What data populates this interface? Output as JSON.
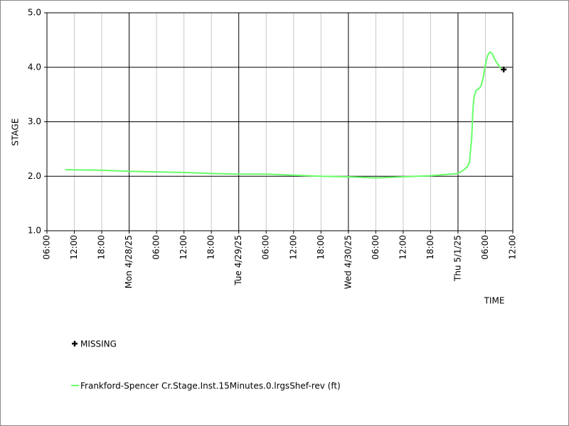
{
  "chart_data": {
    "type": "line",
    "x_label": "TIME",
    "y_label": "STAGE",
    "xlim": [
      "2025-04-27T06:00",
      "2025-05-01T12:00"
    ],
    "xticks": [
      {
        "value": "2025-04-27T06:00",
        "label": "06:00"
      },
      {
        "value": "2025-04-27T12:00",
        "label": "12:00"
      },
      {
        "value": "2025-04-27T18:00",
        "label": "18:00"
      },
      {
        "value": "2025-04-28T00:00",
        "label": "Mon 4/28/25"
      },
      {
        "value": "2025-04-28T06:00",
        "label": "06:00"
      },
      {
        "value": "2025-04-28T12:00",
        "label": "12:00"
      },
      {
        "value": "2025-04-28T18:00",
        "label": "18:00"
      },
      {
        "value": "2025-04-29T00:00",
        "label": "Tue 4/29/25"
      },
      {
        "value": "2025-04-29T06:00",
        "label": "06:00"
      },
      {
        "value": "2025-04-29T12:00",
        "label": "12:00"
      },
      {
        "value": "2025-04-29T18:00",
        "label": "18:00"
      },
      {
        "value": "2025-04-30T00:00",
        "label": "Wed 4/30/25"
      },
      {
        "value": "2025-04-30T06:00",
        "label": "06:00"
      },
      {
        "value": "2025-04-30T12:00",
        "label": "12:00"
      },
      {
        "value": "2025-04-30T18:00",
        "label": "18:00"
      },
      {
        "value": "2025-05-01T00:00",
        "label": "Thu 5/1/25"
      },
      {
        "value": "2025-05-01T06:00",
        "label": "06:00"
      },
      {
        "value": "2025-05-01T12:00",
        "label": "12:00"
      }
    ],
    "ylim": [
      1,
      5
    ],
    "yticks": [
      {
        "value": 1,
        "label": "1.0"
      },
      {
        "value": 2,
        "label": "2.0"
      },
      {
        "value": 3,
        "label": "3.0"
      },
      {
        "value": 4,
        "label": "4.0"
      },
      {
        "value": 5,
        "label": "5.0"
      }
    ],
    "grid": true,
    "series": [
      {
        "name": "MISSING",
        "style": "marker",
        "color": "#000000",
        "x": [
          "2025-05-01T10:00"
        ],
        "values": [
          3.96
        ]
      },
      {
        "name": "Frankford-Spencer Cr.Stage.Inst.15Minutes.0.lrgsShef-rev (ft)",
        "style": "line",
        "color": "#66ff66",
        "x": [
          "2025-04-27T10:00",
          "2025-04-27T18:00",
          "2025-04-28T00:00",
          "2025-04-28T06:00",
          "2025-04-28T12:00",
          "2025-04-28T18:00",
          "2025-04-29T00:00",
          "2025-04-29T06:00",
          "2025-04-29T12:00",
          "2025-04-29T18:00",
          "2025-04-30T00:00",
          "2025-04-30T06:00",
          "2025-04-30T12:00",
          "2025-04-30T18:00",
          "2025-05-01T00:00",
          "2025-05-01T01:00",
          "2025-05-01T02:00",
          "2025-05-01T02:30",
          "2025-05-01T03:00",
          "2025-05-01T03:15",
          "2025-05-01T03:30",
          "2025-05-01T04:00",
          "2025-05-01T04:30",
          "2025-05-01T05:00",
          "2025-05-01T05:30",
          "2025-05-01T06:00",
          "2025-05-01T06:30",
          "2025-05-01T07:00",
          "2025-05-01T07:30",
          "2025-05-01T08:00",
          "2025-05-01T09:00",
          "2025-05-01T09:30"
        ],
        "values": [
          2.12,
          2.11,
          2.09,
          2.08,
          2.07,
          2.05,
          2.04,
          2.04,
          2.02,
          2.0,
          1.99,
          1.97,
          1.99,
          2.01,
          2.05,
          2.1,
          2.17,
          2.25,
          2.7,
          3.2,
          3.45,
          3.58,
          3.6,
          3.65,
          3.8,
          4.05,
          4.22,
          4.28,
          4.25,
          4.15,
          4.02,
          3.97
        ]
      }
    ]
  }
}
